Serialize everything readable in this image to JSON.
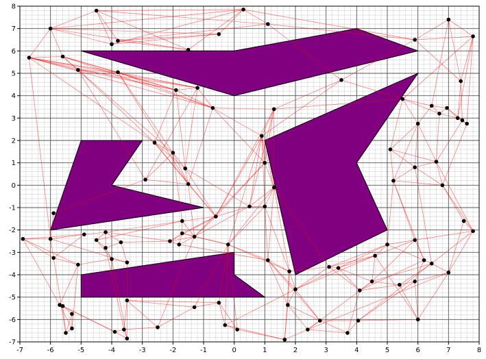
{
  "chart_data": {
    "type": "scatter",
    "title": "",
    "xlabel": "",
    "ylabel": "",
    "xlim": [
      -7,
      8
    ],
    "ylim": [
      -7,
      8
    ],
    "x_ticks": [
      -7,
      -6,
      -5,
      -4,
      -3,
      -2,
      -1,
      0,
      1,
      2,
      3,
      4,
      5,
      6,
      7,
      8
    ],
    "y_ticks": [
      -7,
      -6,
      -5,
      -4,
      -3,
      -2,
      -1,
      0,
      1,
      2,
      3,
      4,
      5,
      6,
      7,
      8
    ],
    "minor_grid_step": 0.2,
    "grid": true,
    "colors": {
      "obstacle_fill": "#800080",
      "obstacle_edge": "#000000",
      "edge": "#ff0000",
      "node": "#000000"
    },
    "obstacles": [
      [
        [
          -5,
          6
        ],
        [
          0,
          6
        ],
        [
          4,
          7
        ],
        [
          6,
          6
        ],
        [
          0,
          4
        ],
        [
          -5,
          6
        ]
      ],
      [
        [
          -5,
          2
        ],
        [
          -3,
          2
        ],
        [
          -4,
          0
        ],
        [
          -1,
          -1
        ],
        [
          -6,
          -2
        ],
        [
          -5,
          2
        ]
      ],
      [
        [
          1,
          2
        ],
        [
          6,
          5
        ],
        [
          4,
          1
        ],
        [
          5,
          -2
        ],
        [
          2,
          -4
        ],
        [
          1,
          2
        ]
      ],
      [
        [
          -5,
          -4
        ],
        [
          0,
          -3
        ],
        [
          0,
          -4
        ],
        [
          1,
          -5
        ],
        [
          -5,
          -5
        ],
        [
          -5,
          -4
        ]
      ]
    ],
    "nodes": [
      [
        -4.5,
        7.8
      ],
      [
        0.3,
        7.85
      ],
      [
        1.1,
        7.2
      ],
      [
        -6,
        7
      ],
      [
        -0.5,
        6.75
      ],
      [
        -3.8,
        6.45
      ],
      [
        -4,
        6.3
      ],
      [
        -1.5,
        6.05
      ],
      [
        -6.7,
        5.7
      ],
      [
        -5.6,
        5.75
      ],
      [
        -5.1,
        5.15
      ],
      [
        -3.8,
        5.05
      ],
      [
        -1.9,
        4.25
      ],
      [
        -1.2,
        4.35
      ],
      [
        -0.7,
        3.45
      ],
      [
        1.3,
        3.4
      ],
      [
        3.5,
        4.7
      ],
      [
        5.9,
        6.5
      ],
      [
        7,
        7.4
      ],
      [
        7.8,
        6.65
      ],
      [
        7.4,
        4.65
      ],
      [
        5.5,
        3.85
      ],
      [
        6.45,
        3.55
      ],
      [
        6.7,
        3.2
      ],
      [
        6.95,
        3.45
      ],
      [
        7.3,
        3
      ],
      [
        7.45,
        2.9
      ],
      [
        7.6,
        2.75
      ],
      [
        6,
        2.75
      ],
      [
        5.1,
        1.6
      ],
      [
        6.6,
        1.05
      ],
      [
        5.9,
        0.8
      ],
      [
        6.8,
        0
      ],
      [
        5.2,
        0.2
      ],
      [
        0.9,
        2.2
      ],
      [
        1,
        1
      ],
      [
        -2.6,
        1.9
      ],
      [
        -2,
        1.45
      ],
      [
        -1.6,
        0.75
      ],
      [
        -1.5,
        0.05
      ],
      [
        -2.9,
        0.25
      ],
      [
        -5.9,
        -1.25
      ],
      [
        1.3,
        -0.1
      ],
      [
        0.5,
        -0.95
      ],
      [
        1,
        -0.95
      ],
      [
        -0.6,
        -1.4
      ],
      [
        -1.7,
        -1.6
      ],
      [
        -1.3,
        -2.3
      ],
      [
        -1.7,
        -2.15
      ],
      [
        -2.1,
        -2.5
      ],
      [
        -1.8,
        -2.65
      ],
      [
        -4.2,
        -2.1
      ],
      [
        -4.5,
        -2.45
      ],
      [
        -4.2,
        -2.8
      ],
      [
        -3.7,
        -2.55
      ],
      [
        -4.9,
        -2.2
      ],
      [
        -4,
        -3.3
      ],
      [
        -3.5,
        -3.45
      ],
      [
        -6,
        -2.4
      ],
      [
        -6.9,
        -2.4
      ],
      [
        -5.9,
        -3.25
      ],
      [
        -5.1,
        -3.55
      ],
      [
        -0.2,
        -2.65
      ],
      [
        1.1,
        -3.35
      ],
      [
        1.8,
        -3.85
      ],
      [
        2,
        -4.65
      ],
      [
        3.1,
        -3.65
      ],
      [
        3.4,
        -3.7
      ],
      [
        4.1,
        -4.7
      ],
      [
        4.5,
        -4.3
      ],
      [
        4.6,
        -3.15
      ],
      [
        5,
        -2.65
      ],
      [
        5.4,
        -4.45
      ],
      [
        5.9,
        -2.45
      ],
      [
        6.2,
        -3.35
      ],
      [
        5.9,
        -4.3
      ],
      [
        6.45,
        -3.5
      ],
      [
        7,
        -3.9
      ],
      [
        7.5,
        -1.6
      ],
      [
        7.8,
        -2.05
      ],
      [
        1.75,
        -5.35
      ],
      [
        2.8,
        -6.05
      ],
      [
        4.05,
        -6.05
      ],
      [
        3.7,
        -6.6
      ],
      [
        6,
        -6
      ],
      [
        2.4,
        -6.45
      ],
      [
        1.65,
        -6.9
      ],
      [
        -0.3,
        -6.25
      ],
      [
        0.1,
        -6.45
      ],
      [
        -0.5,
        -5.25
      ],
      [
        -1.3,
        -5.45
      ],
      [
        -2.5,
        -6.35
      ],
      [
        -3.5,
        -5.15
      ],
      [
        -3.6,
        -6.45
      ],
      [
        -3.5,
        -6.85
      ],
      [
        -3.9,
        -6.55
      ],
      [
        -5.6,
        -5.4
      ],
      [
        -5.7,
        -5.35
      ],
      [
        -5.5,
        -6.6
      ],
      [
        -5.3,
        -6.4
      ],
      [
        -5.3,
        -5.75
      ]
    ],
    "edges": [
      [
        0,
        1
      ],
      [
        0,
        3
      ],
      [
        0,
        5
      ],
      [
        0,
        6
      ],
      [
        0,
        7
      ],
      [
        0,
        2
      ],
      [
        1,
        2
      ],
      [
        1,
        3
      ],
      [
        1,
        4
      ],
      [
        1,
        6
      ],
      [
        1,
        7
      ],
      [
        2,
        5
      ],
      [
        3,
        4
      ],
      [
        3,
        6
      ],
      [
        3,
        7
      ],
      [
        3,
        8
      ],
      [
        3,
        9
      ],
      [
        4,
        5
      ],
      [
        4,
        6
      ],
      [
        5,
        7
      ],
      [
        8,
        9
      ],
      [
        8,
        10
      ],
      [
        8,
        11
      ],
      [
        8,
        12
      ],
      [
        8,
        13
      ],
      [
        8,
        14
      ],
      [
        8,
        36
      ],
      [
        8,
        58
      ],
      [
        9,
        10
      ],
      [
        9,
        11
      ],
      [
        9,
        12
      ],
      [
        9,
        14
      ],
      [
        9,
        37
      ],
      [
        10,
        11
      ],
      [
        10,
        12
      ],
      [
        10,
        13
      ],
      [
        10,
        36
      ],
      [
        10,
        40
      ],
      [
        11,
        12
      ],
      [
        11,
        13
      ],
      [
        11,
        14
      ],
      [
        11,
        37
      ],
      [
        11,
        39
      ],
      [
        12,
        13
      ],
      [
        12,
        14
      ],
      [
        12,
        36
      ],
      [
        12,
        38
      ],
      [
        13,
        14
      ],
      [
        13,
        38
      ],
      [
        13,
        40
      ],
      [
        14,
        34
      ],
      [
        14,
        15
      ],
      [
        14,
        35
      ],
      [
        14,
        39
      ],
      [
        15,
        34
      ],
      [
        15,
        35
      ],
      [
        15,
        42
      ],
      [
        15,
        43
      ],
      [
        15,
        45
      ],
      [
        15,
        16
      ],
      [
        16,
        34
      ],
      [
        34,
        35
      ],
      [
        34,
        42
      ],
      [
        34,
        43
      ],
      [
        34,
        44
      ],
      [
        34,
        45
      ],
      [
        34,
        62
      ],
      [
        35,
        42
      ],
      [
        35,
        45
      ],
      [
        35,
        47
      ],
      [
        36,
        37
      ],
      [
        36,
        38
      ],
      [
        36,
        39
      ],
      [
        36,
        45
      ],
      [
        37,
        38
      ],
      [
        37,
        39
      ],
      [
        37,
        46
      ],
      [
        38,
        39
      ],
      [
        38,
        45
      ],
      [
        38,
        43
      ],
      [
        39,
        45
      ],
      [
        39,
        47
      ],
      [
        40,
        37
      ],
      [
        40,
        39
      ],
      [
        41,
        40
      ],
      [
        41,
        58
      ],
      [
        42,
        43
      ],
      [
        42,
        44
      ],
      [
        42,
        62
      ],
      [
        42,
        63
      ],
      [
        42,
        64
      ],
      [
        43,
        44
      ],
      [
        43,
        45
      ],
      [
        43,
        47
      ],
      [
        44,
        62
      ],
      [
        44,
        63
      ],
      [
        45,
        46
      ],
      [
        45,
        47
      ],
      [
        45,
        48
      ],
      [
        45,
        49
      ],
      [
        46,
        47
      ],
      [
        46,
        48
      ],
      [
        46,
        51
      ],
      [
        46,
        52
      ],
      [
        47,
        48
      ],
      [
        47,
        49
      ],
      [
        47,
        50
      ],
      [
        48,
        49
      ],
      [
        48,
        50
      ],
      [
        49,
        50
      ],
      [
        49,
        51
      ],
      [
        49,
        54
      ],
      [
        51,
        52
      ],
      [
        51,
        53
      ],
      [
        51,
        54
      ],
      [
        51,
        55
      ],
      [
        52,
        53
      ],
      [
        52,
        56
      ],
      [
        53,
        54
      ],
      [
        53,
        56
      ],
      [
        54,
        57
      ],
      [
        55,
        58
      ],
      [
        55,
        59
      ],
      [
        55,
        60
      ],
      [
        56,
        57
      ],
      [
        57,
        58
      ],
      [
        58,
        59
      ],
      [
        58,
        60
      ],
      [
        59,
        60
      ],
      [
        59,
        61
      ],
      [
        59,
        97
      ],
      [
        60,
        61
      ],
      [
        60,
        98
      ],
      [
        61,
        56
      ],
      [
        61,
        99
      ],
      [
        62,
        63
      ],
      [
        62,
        64
      ],
      [
        62,
        89
      ],
      [
        63,
        64
      ],
      [
        63,
        65
      ],
      [
        63,
        80
      ],
      [
        64,
        65
      ],
      [
        64,
        66
      ],
      [
        64,
        80
      ],
      [
        65,
        66
      ],
      [
        65,
        67
      ],
      [
        65,
        80
      ],
      [
        65,
        81
      ],
      [
        66,
        67
      ],
      [
        66,
        68
      ],
      [
        66,
        70
      ],
      [
        67,
        68
      ],
      [
        67,
        69
      ],
      [
        67,
        70
      ],
      [
        67,
        71
      ],
      [
        68,
        69
      ],
      [
        68,
        72
      ],
      [
        69,
        70
      ],
      [
        69,
        72
      ],
      [
        70,
        71
      ],
      [
        70,
        73
      ],
      [
        71,
        73
      ],
      [
        71,
        74
      ],
      [
        72,
        75
      ],
      [
        72,
        76
      ],
      [
        73,
        74
      ],
      [
        74,
        75
      ],
      [
        74,
        76
      ],
      [
        75,
        77
      ],
      [
        76,
        77
      ],
      [
        77,
        78
      ],
      [
        78,
        79
      ],
      [
        77,
        79
      ],
      [
        73,
        79
      ],
      [
        72,
        84
      ],
      [
        75,
        84
      ],
      [
        80,
        81
      ],
      [
        80,
        85
      ],
      [
        80,
        86
      ],
      [
        81,
        82
      ],
      [
        81,
        83
      ],
      [
        81,
        85
      ],
      [
        82,
        83
      ],
      [
        82,
        84
      ],
      [
        83,
        85
      ],
      [
        84,
        77
      ],
      [
        85,
        86
      ],
      [
        86,
        87
      ],
      [
        86,
        88
      ],
      [
        87,
        88
      ],
      [
        87,
        89
      ],
      [
        88,
        89
      ],
      [
        89,
        90
      ],
      [
        89,
        92
      ],
      [
        90,
        91
      ],
      [
        90,
        92
      ],
      [
        91,
        92
      ],
      [
        91,
        93
      ],
      [
        92,
        93
      ],
      [
        92,
        94
      ],
      [
        93,
        94
      ],
      [
        93,
        95
      ],
      [
        94,
        95
      ],
      [
        95,
        96
      ],
      [
        95,
        97
      ],
      [
        96,
        97
      ],
      [
        96,
        98
      ],
      [
        97,
        99
      ],
      [
        98,
        99
      ],
      [
        99,
        100
      ],
      [
        100,
        96
      ],
      [
        98,
        100
      ],
      [
        97,
        61
      ],
      [
        17,
        18
      ],
      [
        17,
        19
      ],
      [
        17,
        20
      ],
      [
        18,
        19
      ],
      [
        18,
        20
      ],
      [
        18,
        22
      ],
      [
        19,
        20
      ],
      [
        19,
        21
      ],
      [
        19,
        25
      ],
      [
        19,
        27
      ],
      [
        20,
        25
      ],
      [
        20,
        26
      ],
      [
        21,
        22
      ],
      [
        21,
        23
      ],
      [
        21,
        28
      ],
      [
        21,
        29
      ],
      [
        22,
        23
      ],
      [
        22,
        24
      ],
      [
        22,
        28
      ],
      [
        23,
        24
      ],
      [
        23,
        25
      ],
      [
        23,
        30
      ],
      [
        24,
        25
      ],
      [
        24,
        26
      ],
      [
        25,
        26
      ],
      [
        25,
        27
      ],
      [
        26,
        27
      ],
      [
        26,
        30
      ],
      [
        27,
        32
      ],
      [
        28,
        29
      ],
      [
        28,
        30
      ],
      [
        28,
        31
      ],
      [
        29,
        30
      ],
      [
        29,
        31
      ],
      [
        29,
        33
      ],
      [
        30,
        31
      ],
      [
        30,
        32
      ],
      [
        31,
        32
      ],
      [
        31,
        33
      ],
      [
        32,
        33
      ],
      [
        33,
        71
      ],
      [
        33,
        73
      ],
      [
        32,
        78
      ],
      [
        32,
        79
      ],
      [
        30,
        79
      ],
      [
        33,
        74
      ],
      [
        31,
        76
      ],
      [
        28,
        33
      ],
      [
        16,
        17
      ],
      [
        16,
        21
      ],
      [
        15,
        21
      ],
      [
        2,
        17
      ],
      [
        1,
        17
      ],
      [
        2,
        16
      ],
      [
        42,
        66
      ],
      [
        44,
        64
      ],
      [
        63,
        81
      ],
      [
        62,
        87
      ],
      [
        62,
        88
      ],
      [
        47,
        62
      ],
      [
        48,
        62
      ],
      [
        50,
        63
      ],
      [
        79,
        82
      ],
      [
        77,
        85
      ],
      [
        73,
        69
      ],
      [
        71,
        66
      ],
      [
        70,
        65
      ],
      [
        74,
        68
      ],
      [
        76,
        69
      ],
      [
        75,
        82
      ],
      [
        84,
        70
      ],
      [
        83,
        68
      ],
      [
        85,
        69
      ],
      [
        86,
        64
      ],
      [
        87,
        65
      ],
      [
        90,
        62
      ],
      [
        91,
        47
      ],
      [
        92,
        57
      ],
      [
        93,
        53
      ],
      [
        94,
        56
      ]
    ]
  }
}
